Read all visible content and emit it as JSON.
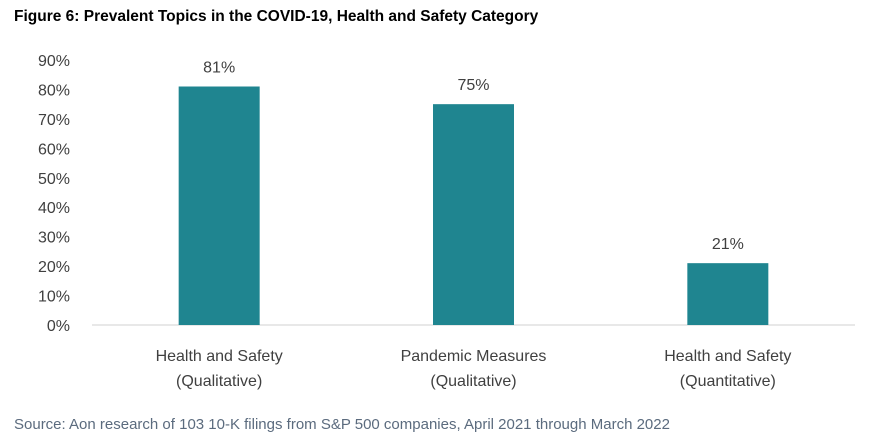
{
  "title": "Figure 6: Prevalent Topics in the COVID-19, Health and Safety Category",
  "source": "Source: Aon research of 103 10-K filings from S&P 500 companies, April 2021 through March 2022",
  "colors": {
    "bar": "#1f8590",
    "axis": "#d0d0d0",
    "text": "#404040",
    "source": "#5b6b7e"
  },
  "chart_data": {
    "type": "bar",
    "categories": [
      [
        "Health and Safety",
        "(Qualitative)"
      ],
      [
        "Pandemic Measures",
        "(Qualitative)"
      ],
      [
        "Health and Safety",
        "(Quantitative)"
      ]
    ],
    "values": [
      81,
      75,
      21
    ],
    "data_labels": [
      "81%",
      "75%",
      "21%"
    ],
    "ylim": [
      0,
      90
    ],
    "yticks": [
      "0%",
      "10%",
      "20%",
      "30%",
      "40%",
      "50%",
      "60%",
      "70%",
      "80%",
      "90%"
    ],
    "grid": false,
    "legend": "none"
  }
}
